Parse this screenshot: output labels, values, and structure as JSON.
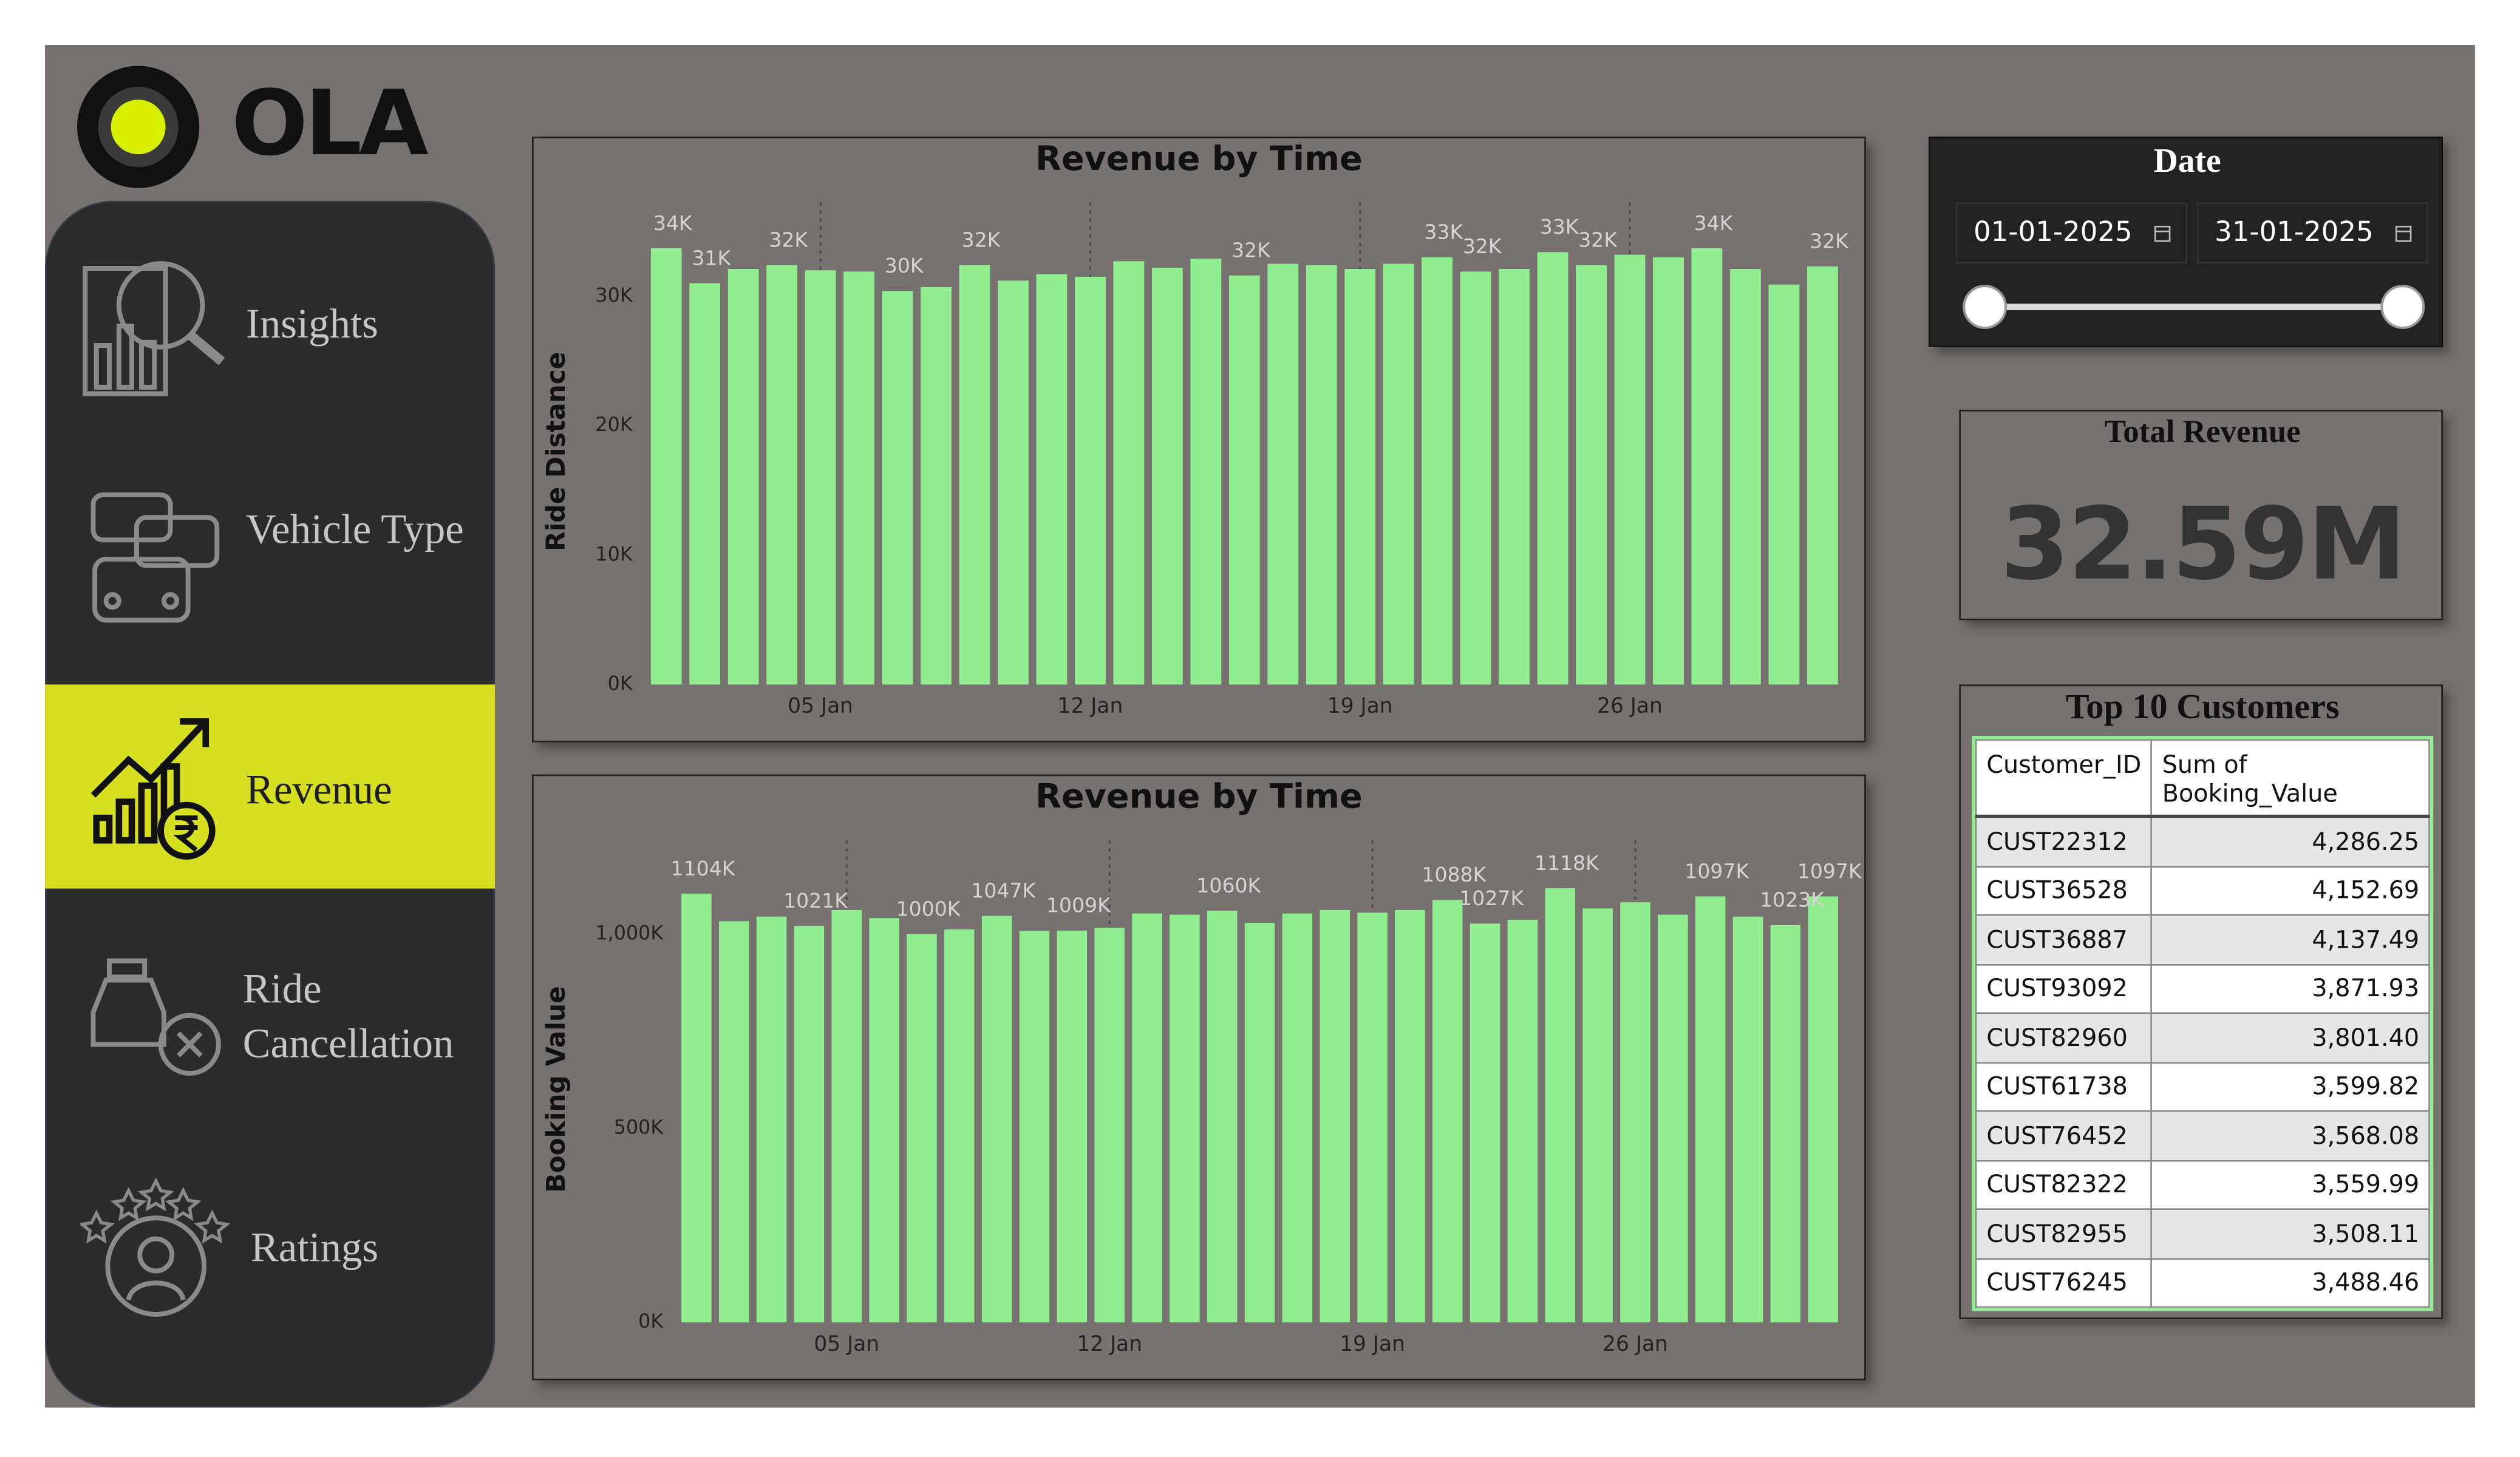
{
  "logo": "OLA",
  "nav": [
    "Insights",
    "Vehicle Type",
    "Revenue",
    "Ride Cancellation",
    "Ratings"
  ],
  "chart_data": [
    {
      "type": "bar",
      "title": "Revenue by Time",
      "y_label": "Ride Distance",
      "color": "#90ee90",
      "categories": [
        null,
        null,
        null,
        null,
        "05 Jan",
        null,
        null,
        null,
        null,
        null,
        null,
        "12 Jan",
        null,
        null,
        null,
        null,
        null,
        null,
        "19 Jan",
        null,
        null,
        null,
        null,
        null,
        null,
        "26 Jan",
        null,
        null,
        null,
        null,
        null
      ],
      "values": [
        33700,
        31000,
        32100,
        32400,
        32000,
        31900,
        30400,
        30700,
        32400,
        31200,
        31700,
        31500,
        32700,
        32200,
        32900,
        31600,
        32500,
        32400,
        32100,
        32500,
        33000,
        31900,
        32100,
        33400,
        32400,
        33200,
        33000,
        33700,
        32100,
        30900,
        32300
      ],
      "value_labels": [
        "34K",
        "31K",
        null,
        "32K",
        null,
        null,
        "30K",
        null,
        "32K",
        null,
        null,
        null,
        null,
        null,
        null,
        "32K",
        null,
        null,
        null,
        null,
        "33K",
        "32K",
        null,
        "33K",
        "32K",
        null,
        null,
        "34K",
        null,
        null,
        "32K"
      ],
      "ylim": [
        0,
        36000
      ],
      "yticks": [
        {
          "value": 0,
          "label": "0K"
        },
        {
          "value": 10000,
          "label": "10K"
        },
        {
          "value": 20000,
          "label": "20K"
        },
        {
          "value": 30000,
          "label": "30K"
        }
      ]
    },
    {
      "type": "bar",
      "title": "Revenue by Time",
      "y_label": "Booking Value",
      "color": "#90ee90",
      "categories": [
        null,
        null,
        null,
        null,
        "05 Jan",
        null,
        null,
        null,
        null,
        null,
        null,
        "12 Jan",
        null,
        null,
        null,
        null,
        null,
        null,
        "19 Jan",
        null,
        null,
        null,
        null,
        null,
        null,
        "26 Jan",
        null,
        null,
        null,
        null,
        null
      ],
      "values": [
        1104000,
        1033000,
        1045000,
        1021000,
        1062000,
        1041000,
        1000000,
        1012000,
        1047000,
        1008000,
        1009000,
        1016000,
        1053000,
        1050000,
        1060000,
        1029000,
        1053000,
        1062000,
        1055000,
        1062000,
        1088000,
        1027000,
        1037000,
        1118000,
        1066000,
        1082000,
        1050000,
        1097000,
        1045000,
        1023000,
        1097000
      ],
      "value_labels": [
        "1104K",
        null,
        null,
        "1021K",
        null,
        null,
        "1000K",
        null,
        "1047K",
        null,
        "1009K",
        null,
        null,
        null,
        "1060K",
        null,
        null,
        null,
        null,
        null,
        "1088K",
        "1027K",
        null,
        "1118K",
        null,
        null,
        null,
        "1097K",
        null,
        "1023K",
        "1097K"
      ],
      "ylim": [
        0,
        1200000
      ],
      "yticks": [
        {
          "value": 0,
          "label": "0K"
        },
        {
          "value": 500000,
          "label": "500K"
        },
        {
          "value": 1000000,
          "label": "1,000K"
        }
      ]
    }
  ],
  "date_slicer": {
    "title": "Date",
    "start": "01-01-2025",
    "end": "31-01-2025"
  },
  "kpi": {
    "title": "Total Revenue",
    "value": "32.59M"
  },
  "table": {
    "title": "Top 10 Customers",
    "columns": [
      "Customer_ID",
      "Sum of Booking_Value"
    ],
    "rows": [
      [
        "CUST22312",
        "4,286.25"
      ],
      [
        "CUST36528",
        "4,152.69"
      ],
      [
        "CUST36887",
        "4,137.49"
      ],
      [
        "CUST93092",
        "3,871.93"
      ],
      [
        "CUST82960",
        "3,801.40"
      ],
      [
        "CUST61738",
        "3,599.82"
      ],
      [
        "CUST76452",
        "3,568.08"
      ],
      [
        "CUST82322",
        "3,559.99"
      ],
      [
        "CUST82955",
        "3,508.11"
      ],
      [
        "CUST76245",
        "3,488.46"
      ]
    ]
  }
}
